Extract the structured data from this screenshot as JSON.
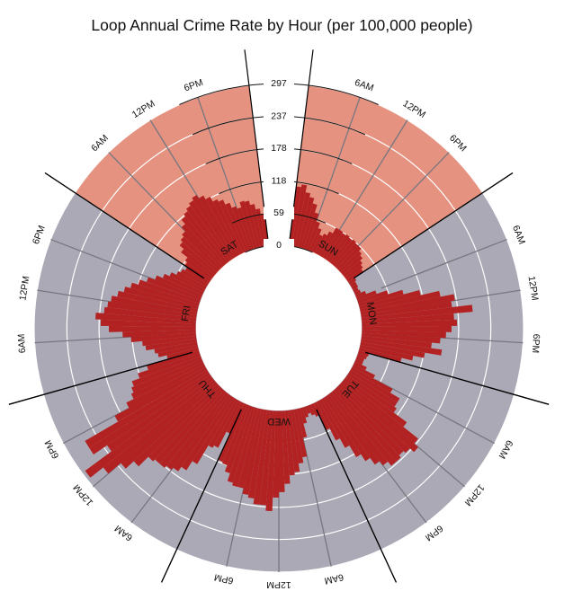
{
  "chart_data": {
    "type": "radial-bar",
    "title": "Loop Annual Crime Rate by Hour (per 100,000 people)",
    "days": [
      "SUN",
      "MON",
      "TUE",
      "WED",
      "THU",
      "FRI",
      "SAT"
    ],
    "hour_labels": [
      "6AM",
      "12PM",
      "6PM"
    ],
    "radial_ticks": [
      0,
      59,
      118,
      178,
      237,
      297
    ],
    "rmax": 297,
    "weekend_days": [
      "SAT",
      "SUN"
    ],
    "colors": {
      "weekday_bg": "#aaa9b5",
      "weekend_bg": "#e59280",
      "bar": "#b22222",
      "grid": "#ffffff",
      "axis": "#000000"
    },
    "series": [
      {
        "day": "SUN",
        "values": [
          110,
          115,
          102,
          95,
          85,
          70,
          55,
          45,
          35,
          40,
          48,
          60,
          60,
          58,
          60,
          58,
          60,
          58,
          58,
          52,
          48,
          42,
          38,
          34
        ]
      },
      {
        "day": "MON",
        "values": [
          15,
          12,
          12,
          10,
          12,
          20,
          38,
          58,
          85,
          115,
          150,
          175,
          168,
          205,
          170,
          175,
          165,
          155,
          145,
          130,
          150,
          120,
          100,
          80
        ]
      },
      {
        "day": "TUE",
        "values": [
          20,
          18,
          15,
          15,
          25,
          45,
          85,
          105,
          105,
          110,
          140,
          175,
          185,
          175,
          170,
          175,
          175,
          165,
          155,
          140,
          125,
          100,
          80,
          55
        ]
      },
      {
        "day": "WED",
        "values": [
          25,
          20,
          15,
          20,
          30,
          55,
          90,
          100,
          115,
          120,
          135,
          150,
          160,
          185,
          175,
          175,
          165,
          160,
          150,
          150,
          145,
          130,
          118,
          115
        ]
      },
      {
        "day": "THU",
        "values": [
          62,
          95,
          100,
          140,
          160,
          170,
          175,
          180,
          180,
          185,
          210,
          230,
          260,
          290,
          230,
          260,
          260,
          190,
          160,
          145,
          140,
          135,
          120,
          100
        ]
      },
      {
        "day": "FRI",
        "values": [
          60,
          75,
          80,
          95,
          100,
          120,
          135,
          160,
          175,
          185,
          170,
          165,
          160,
          150,
          140,
          130,
          118,
          105,
          92,
          80,
          70,
          60,
          55,
          50
        ]
      },
      {
        "day": "SAT",
        "values": [
          55,
          60,
          75,
          85,
          90,
          95,
          105,
          115,
          120,
          125,
          130,
          135,
          128,
          120,
          110,
          105,
          95,
          85,
          80,
          90,
          88,
          80,
          70,
          60
        ]
      }
    ]
  }
}
